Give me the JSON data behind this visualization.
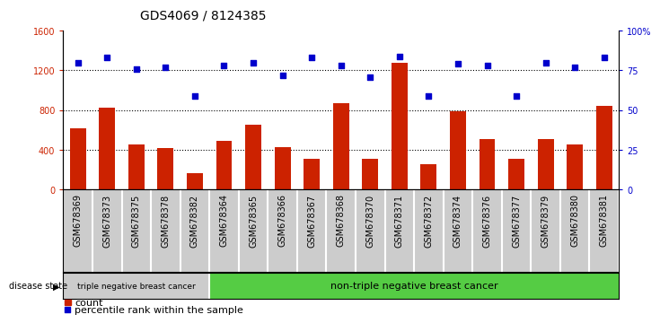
{
  "title": "GDS4069 / 8124385",
  "samples": [
    "GSM678369",
    "GSM678373",
    "GSM678375",
    "GSM678378",
    "GSM678382",
    "GSM678364",
    "GSM678365",
    "GSM678366",
    "GSM678367",
    "GSM678368",
    "GSM678370",
    "GSM678371",
    "GSM678372",
    "GSM678374",
    "GSM678376",
    "GSM678377",
    "GSM678379",
    "GSM678380",
    "GSM678381"
  ],
  "counts": [
    620,
    820,
    450,
    420,
    165,
    490,
    650,
    430,
    310,
    870,
    310,
    1280,
    255,
    790,
    510,
    305,
    510,
    450,
    840
  ],
  "percentiles_pct": [
    80,
    83,
    76,
    77,
    59,
    78,
    80,
    72,
    83,
    78,
    71,
    84,
    59,
    79,
    78,
    59,
    80,
    77,
    83
  ],
  "group1_count": 5,
  "group2_count": 14,
  "group1_label": "triple negative breast cancer",
  "group2_label": "non-triple negative breast cancer",
  "disease_state_label": "disease state",
  "legend_count_label": "count",
  "legend_pct_label": "percentile rank within the sample",
  "left_yticks": [
    0,
    400,
    800,
    1200,
    1600
  ],
  "right_ytick_labels": [
    "0",
    "25",
    "50",
    "75",
    "100%"
  ],
  "right_yticks": [
    0,
    25,
    50,
    75,
    100
  ],
  "ylim_left": [
    0,
    1600
  ],
  "bar_color": "#cc2200",
  "dot_color": "#0000cc",
  "group1_bg": "#cccccc",
  "group2_bg": "#55cc44",
  "xticklabel_bg": "#cccccc",
  "title_fontsize": 10,
  "tick_fontsize": 7,
  "label_fontsize": 8,
  "fig_bg": "#ffffff"
}
